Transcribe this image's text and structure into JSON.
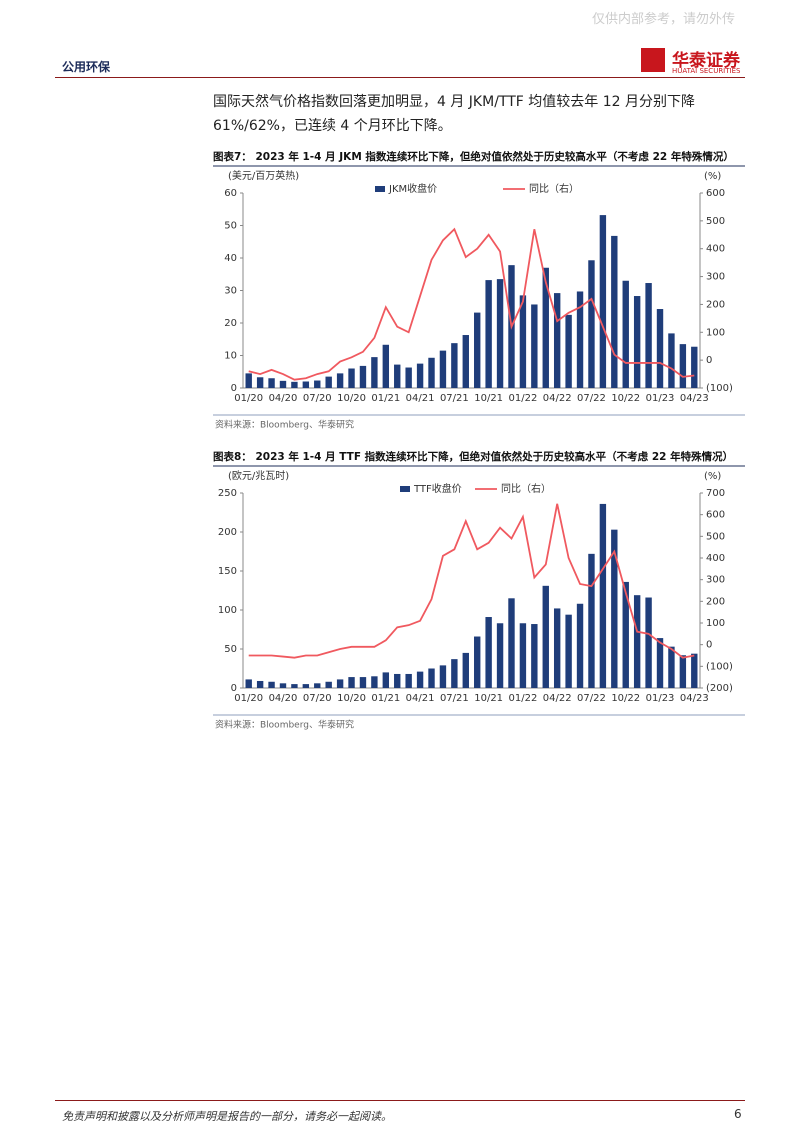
{
  "header": {
    "section": "公用环保",
    "watermark": "仅供内部参考，请勿外传",
    "logo_cn": "华泰证券",
    "logo_en": "HUATAI SECURITIES"
  },
  "paragraph": "国际天然气价格指数回落更加明显，4 月 JKM/TTF 均值较去年 12 月分别下降 61%/62%，已连续 4 个月环比下降。",
  "chart_data": [
    {
      "type": "bar-line",
      "title": "图表7：  2023 年 1-4 月 JKM 指数连续环比下降，但绝对值依然处于历史较高水平（不考虑 22 年特殊情况）",
      "y_label": "(美元/百万英热)",
      "y2_label": "(%)",
      "source": "资料来源：Bloomberg、华泰研究",
      "categories": [
        "01/20",
        null,
        null,
        "04/20",
        null,
        null,
        "07/20",
        null,
        null,
        "10/20",
        null,
        null,
        "01/21",
        null,
        null,
        "04/21",
        null,
        null,
        "07/21",
        null,
        null,
        "10/21",
        null,
        null,
        "01/22",
        null,
        null,
        "04/22",
        null,
        null,
        "07/22",
        null,
        null,
        "10/22",
        null,
        null,
        "01/23",
        null,
        null,
        "04/23"
      ],
      "series": [
        {
          "name": "JKM收盘价",
          "color": "#1f3d7a",
          "values": [
            4.5,
            3.3,
            3.0,
            2.2,
            1.9,
            2.0,
            2.3,
            3.5,
            4.5,
            6.0,
            6.8,
            9.5,
            13.3,
            7.2,
            6.3,
            7.5,
            9.3,
            11.5,
            13.8,
            16.3,
            23.2,
            33.2,
            33.5,
            37.8,
            28.5,
            25.7,
            37.0,
            29.2,
            22.5,
            29.7,
            39.3,
            53.2,
            46.8,
            33.0,
            28.3,
            32.3,
            24.3,
            16.8,
            13.5,
            12.7
          ]
        },
        {
          "name": "同比（右）",
          "color": "#f0595f",
          "axis": "y2",
          "values": [
            -40,
            -50,
            -35,
            -50,
            -70,
            -65,
            -50,
            -40,
            -5,
            10,
            30,
            80,
            190,
            120,
            100,
            230,
            360,
            430,
            470,
            370,
            400,
            450,
            390,
            120,
            210,
            470,
            280,
            140,
            170,
            190,
            220,
            120,
            20,
            -10,
            -10,
            -10,
            -10,
            -30,
            -60,
            -55
          ]
        }
      ],
      "ylim": [
        0,
        60
      ],
      "yticks": [
        0,
        10,
        20,
        30,
        40,
        50,
        60
      ],
      "y2lim": [
        -100,
        600
      ],
      "y2ticks": [
        {
          "value": -100,
          "label": "(100)"
        },
        0,
        100,
        200,
        300,
        400,
        500,
        600
      ],
      "legend": "top"
    },
    {
      "type": "bar-line",
      "title": "图表8：  2023 年 1-4 月 TTF 指数连续环比下降，但绝对值依然处于历史较高水平（不考虑 22 年特殊情况）",
      "y_label": "(欧元/兆瓦时)",
      "y2_label": "(%)",
      "source": "资料来源：Bloomberg、华泰研究",
      "categories": [
        "01/20",
        null,
        null,
        "04/20",
        null,
        null,
        "07/20",
        null,
        null,
        "10/20",
        null,
        null,
        "01/21",
        null,
        null,
        "04/21",
        null,
        null,
        "07/21",
        null,
        null,
        "10/21",
        null,
        null,
        "01/22",
        null,
        null,
        "04/22",
        null,
        null,
        "07/22",
        null,
        null,
        "10/22",
        null,
        null,
        "01/23",
        null,
        null,
        "04/23"
      ],
      "series": [
        {
          "name": "TTF收盘价",
          "color": "#1f3d7a",
          "values": [
            11,
            9,
            8,
            6,
            5,
            5,
            6,
            8,
            11,
            14,
            14,
            15,
            20,
            18,
            18,
            21,
            25,
            29,
            37,
            45,
            66,
            91,
            83,
            115,
            83,
            82,
            131,
            102,
            94,
            108,
            172,
            236,
            203,
            136,
            119,
            116,
            64,
            53,
            42,
            44
          ]
        },
        {
          "name": "同比（右）",
          "color": "#f0595f",
          "axis": "y2",
          "values": [
            -50,
            -50,
            -50,
            -55,
            -60,
            -50,
            -50,
            -35,
            -20,
            -10,
            -10,
            -10,
            20,
            80,
            90,
            110,
            210,
            410,
            440,
            570,
            440,
            470,
            540,
            490,
            590,
            310,
            370,
            650,
            400,
            280,
            270,
            350,
            430,
            240,
            60,
            50,
            10,
            -20,
            -60,
            -50
          ]
        }
      ],
      "ylim": [
        0,
        250
      ],
      "yticks": [
        0,
        50,
        100,
        150,
        200,
        250
      ],
      "y2lim": [
        -200,
        700
      ],
      "y2ticks": [
        {
          "value": -200,
          "label": "(200)"
        },
        {
          "value": -100,
          "label": "(100)"
        },
        0,
        100,
        200,
        300,
        400,
        500,
        600,
        700
      ],
      "legend": "top"
    }
  ],
  "footer": {
    "disclaimer": "免责声明和披露以及分析师声明是报告的一部分，请务必一起阅读。",
    "page": "6"
  }
}
